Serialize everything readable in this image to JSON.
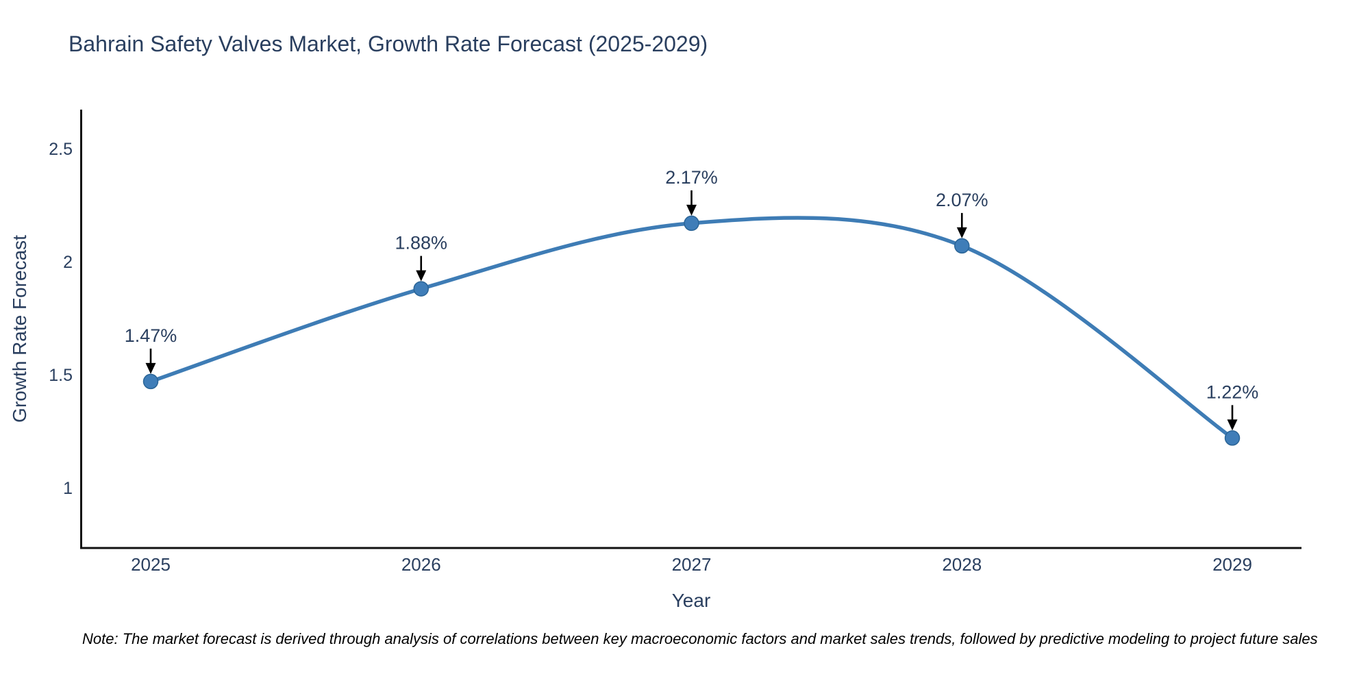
{
  "header": {
    "title": "Bahrain Safety Valves Market, Growth Rate Forecast (2025-2029)"
  },
  "footnote": {
    "text": "Note: The market forecast is derived through analysis of correlations between key macroeconomic factors and market sales trends, followed by predictive modeling to project future sales"
  },
  "chart_data": {
    "type": "line",
    "title": "Bahrain Safety Valves Market, Growth Rate Forecast (2025-2029)",
    "xlabel": "Year",
    "ylabel": "Growth Rate Forecast",
    "line_shape": "spline",
    "grid": false,
    "legend_position": "none",
    "x": [
      2025,
      2026,
      2027,
      2028,
      2029
    ],
    "values": [
      1.47,
      1.88,
      2.17,
      2.07,
      1.22
    ],
    "point_labels": [
      "1.47%",
      "1.88%",
      "2.17%",
      "2.07%",
      "1.22%"
    ],
    "xtick_labels": [
      "2025",
      "2026",
      "2027",
      "2028",
      "2029"
    ],
    "ytick_values": [
      2.5,
      2,
      1.5,
      1
    ],
    "ytick_labels": [
      "2.5",
      "2",
      "1.5",
      "1"
    ],
    "yrange_approx": [
      0.73,
      2.67
    ],
    "colors": {
      "line": "#3e7cb5",
      "marker_fill": "#3f7db8",
      "marker_edge": "#2a6496",
      "axis_line": "#111111",
      "tick_text": "#2a3f5f",
      "axis_title_text": "#2a3f5f",
      "annotation_text": "#2a3f5f",
      "annotation_arrow": "#000000",
      "background": "#ffffff"
    }
  }
}
